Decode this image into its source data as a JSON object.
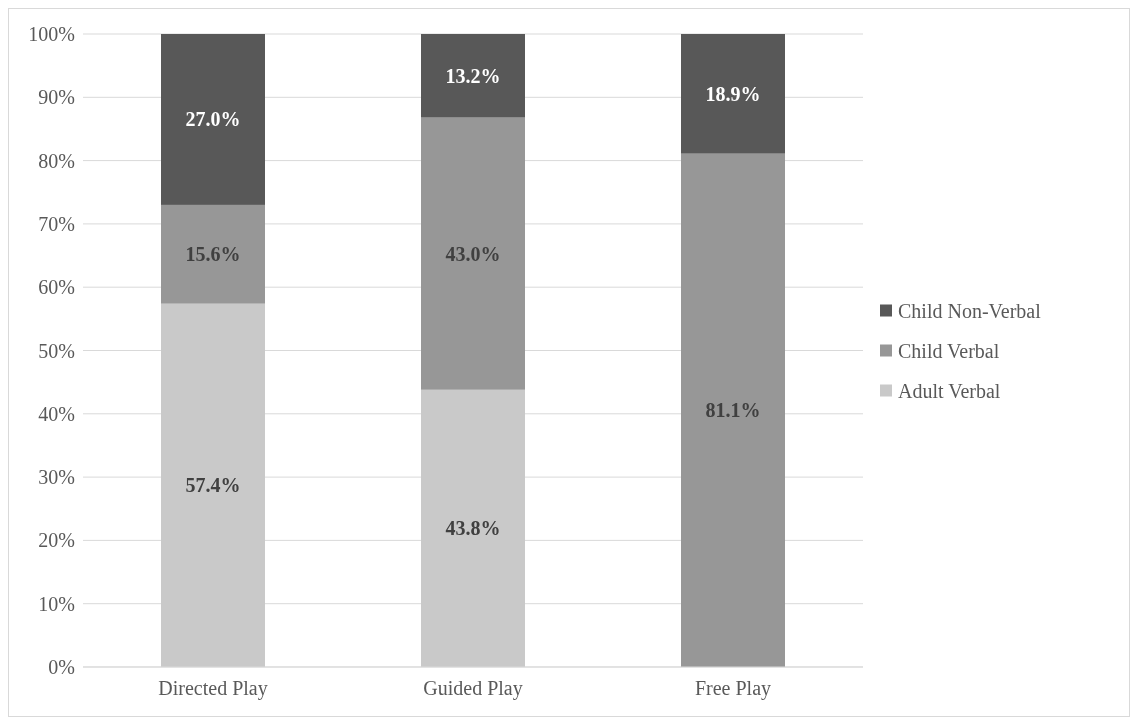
{
  "chart_data": {
    "type": "bar",
    "stacked": true,
    "categories": [
      "Directed Play",
      "Guided Play",
      "Free Play"
    ],
    "series": [
      {
        "name": "Adult Verbal",
        "color": "#c9c9c9",
        "values": [
          57.4,
          43.8,
          null
        ],
        "value_labels": [
          "57.4%",
          "43.8%",
          null
        ]
      },
      {
        "name": "Child Verbal",
        "color": "#979797",
        "values": [
          15.6,
          43.0,
          81.1
        ],
        "value_labels": [
          "15.6%",
          "43.0%",
          "81.1%"
        ]
      },
      {
        "name": "Child Non-Verbal",
        "color": "#585858",
        "values": [
          27.0,
          13.2,
          18.9
        ],
        "value_labels": [
          "27.0%",
          "13.2%",
          "18.9%"
        ]
      }
    ],
    "ylim": [
      0,
      100
    ],
    "yticks": [
      {
        "value": 0,
        "label": "0%"
      },
      {
        "value": 10,
        "label": "10%"
      },
      {
        "value": 20,
        "label": "20%"
      },
      {
        "value": 30,
        "label": "30%"
      },
      {
        "value": 40,
        "label": "40%"
      },
      {
        "value": 50,
        "label": "50%"
      },
      {
        "value": 60,
        "label": "60%"
      },
      {
        "value": 70,
        "label": "70%"
      },
      {
        "value": 80,
        "label": "80%"
      },
      {
        "value": 90,
        "label": "90%"
      },
      {
        "value": 100,
        "label": "100%"
      }
    ],
    "grid": "y",
    "legend": "right"
  }
}
